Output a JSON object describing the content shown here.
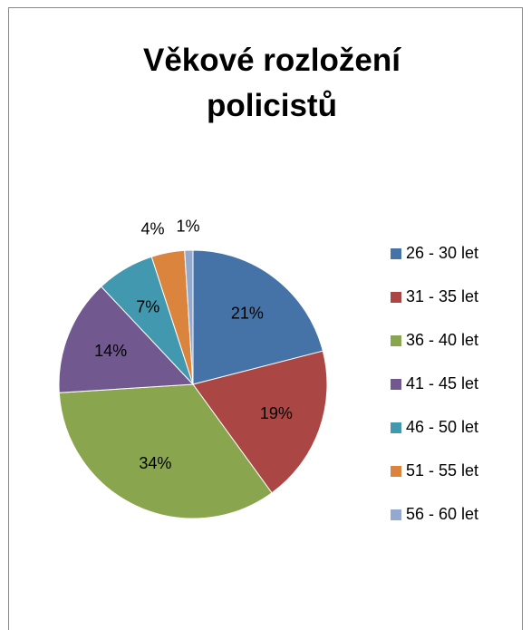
{
  "chart_data": {
    "type": "pie",
    "title": "Věkové rozložení policistů",
    "categories": [
      "26 - 30 let",
      "31 - 35 let",
      "36 - 40 let",
      "41 - 45 let",
      "46 - 50 let",
      "51 - 55 let",
      "56 - 60 let"
    ],
    "values": [
      21,
      19,
      34,
      14,
      7,
      4,
      1
    ],
    "value_labels": [
      "21%",
      "19%",
      "34%",
      "14%",
      "7%",
      "4%",
      "1%"
    ],
    "colors": [
      "#4572a7",
      "#aa4643",
      "#89a54e",
      "#71588f",
      "#4198af",
      "#db843d",
      "#93a9cf"
    ],
    "legend": "right"
  }
}
